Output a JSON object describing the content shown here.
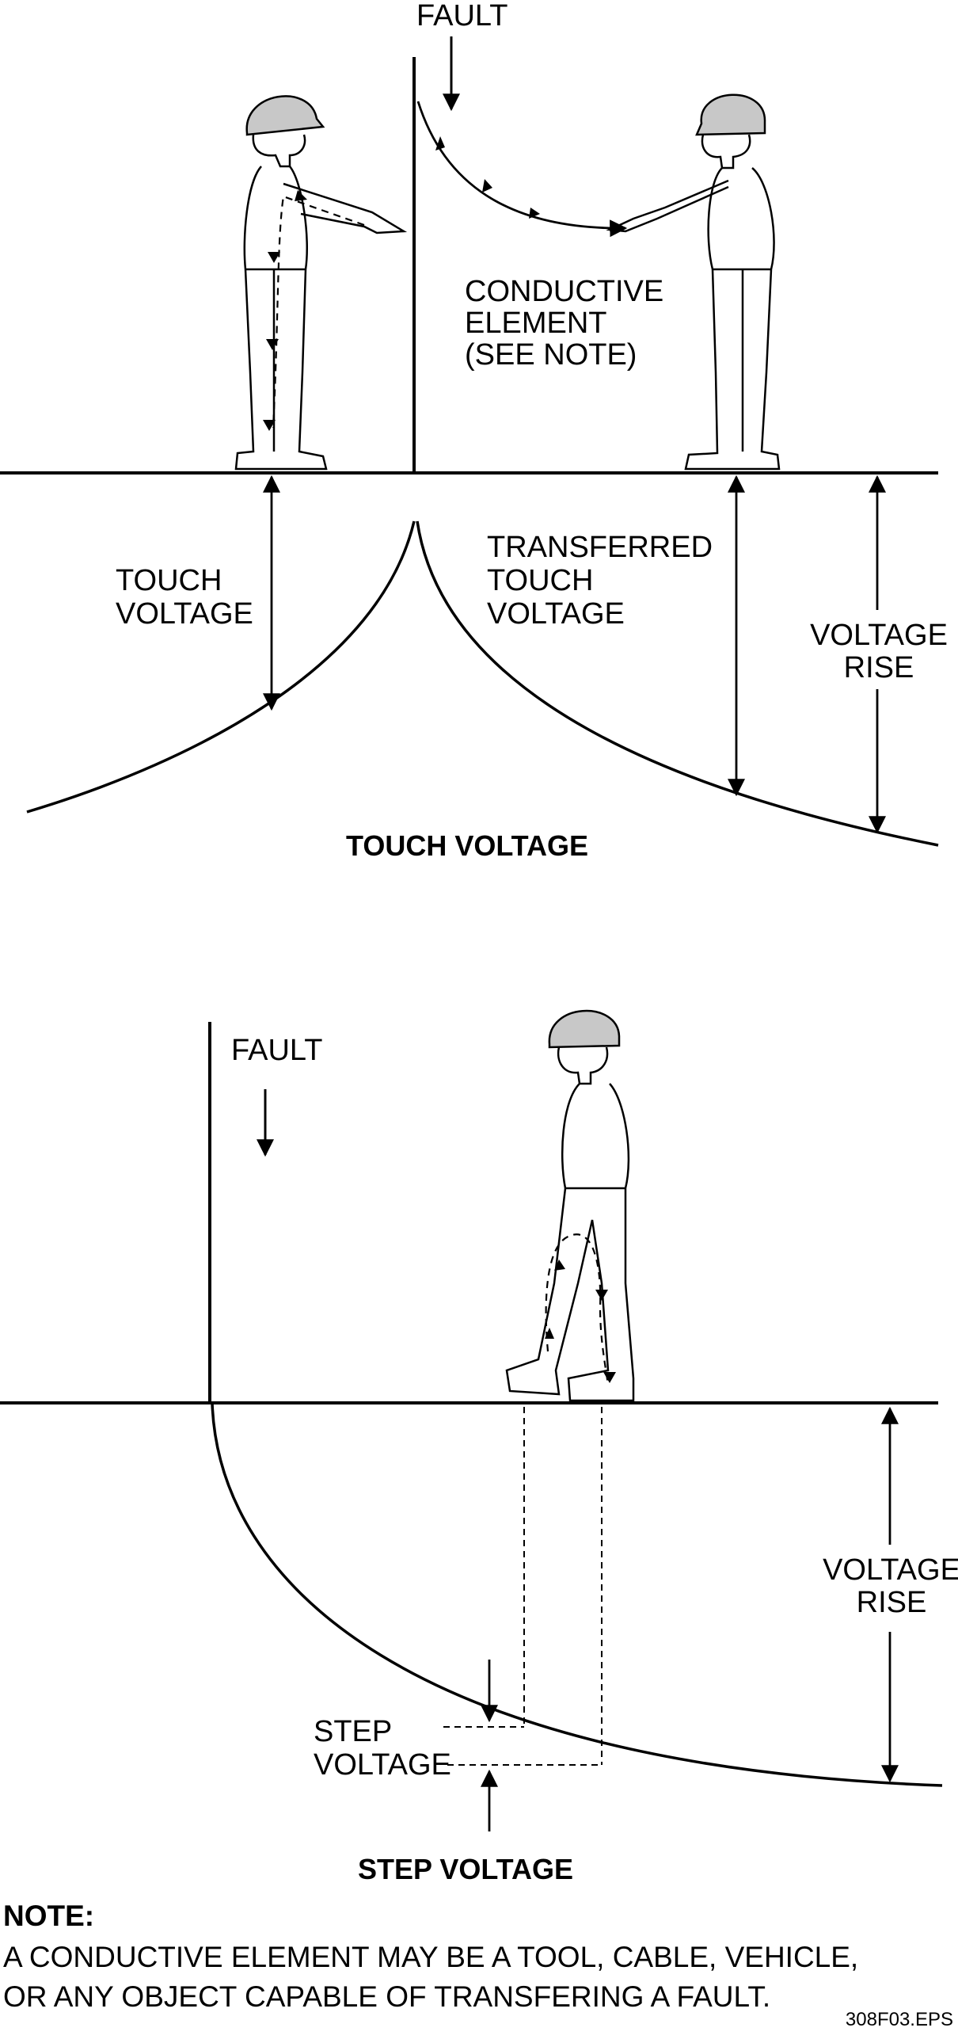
{
  "touch_section": {
    "fault_label": "FAULT",
    "conductive_element_lines": [
      "CONDUCTIVE",
      "ELEMENT",
      "(SEE NOTE)"
    ],
    "touch_voltage_lines": [
      "TOUCH",
      "VOLTAGE"
    ],
    "transferred_lines": [
      "TRANSFERRED",
      "TOUCH",
      "VOLTAGE"
    ],
    "voltage_rise_lines": [
      "VOLTAGE",
      "RISE"
    ],
    "title": "TOUCH VOLTAGE"
  },
  "step_section": {
    "fault_label": "FAULT",
    "voltage_rise_lines": [
      "VOLTAGE",
      "RISE"
    ],
    "step_voltage_lines": [
      "STEP",
      "VOLTAGE"
    ],
    "title": "STEP VOLTAGE"
  },
  "note": {
    "heading": "NOTE:",
    "line1": "A CONDUCTIVE ELEMENT MAY BE A TOOL, CABLE, VEHICLE,",
    "line2": "OR ANY OBJECT CAPABLE OF TRANSFERING A FAULT."
  },
  "figure_code": "308F03.EPS",
  "colors": {
    "line": "#000000",
    "helmet": "#c8c8c8",
    "background": "#ffffff"
  }
}
